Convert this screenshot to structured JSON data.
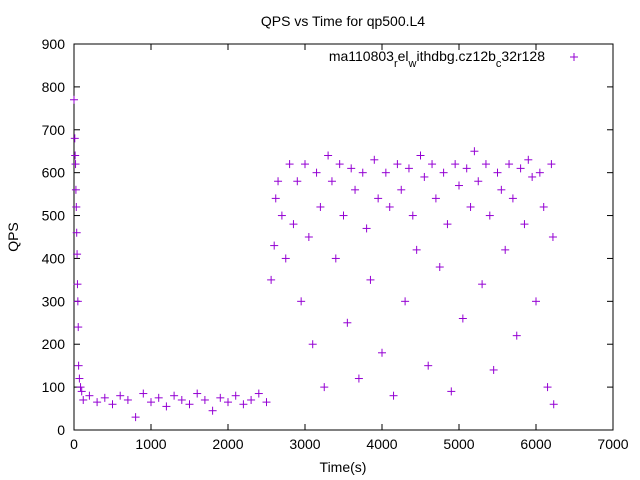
{
  "chart_data": {
    "type": "scatter",
    "title": "QPS vs Time for qp500.L4",
    "xlabel": "Time(s)",
    "ylabel": "QPS",
    "xlim": [
      0,
      7000
    ],
    "ylim": [
      0,
      900
    ],
    "xticks": [
      0,
      1000,
      2000,
      3000,
      4000,
      5000,
      6000,
      7000
    ],
    "yticks": [
      0,
      100,
      200,
      300,
      400,
      500,
      600,
      700,
      800,
      900
    ],
    "grid": false,
    "legend_position": "top-right",
    "marker": "+",
    "series": [
      {
        "name": "ma110803_rel_withdbg.cz12b_c32r128",
        "legend_parts": [
          {
            "text": "ma110803",
            "shift": "none"
          },
          {
            "text": "r",
            "shift": "sub"
          },
          {
            "text": "el",
            "shift": "none"
          },
          {
            "text": "w",
            "shift": "sub"
          },
          {
            "text": "ithdbg.cz12b",
            "shift": "none"
          },
          {
            "text": "c",
            "shift": "sub"
          },
          {
            "text": "32r128",
            "shift": "none"
          }
        ],
        "color": "#9400d3",
        "points": [
          [
            0,
            770
          ],
          [
            10,
            680
          ],
          [
            15,
            640
          ],
          [
            20,
            620
          ],
          [
            25,
            560
          ],
          [
            30,
            520
          ],
          [
            35,
            460
          ],
          [
            40,
            410
          ],
          [
            45,
            340
          ],
          [
            50,
            300
          ],
          [
            55,
            240
          ],
          [
            60,
            150
          ],
          [
            70,
            120
          ],
          [
            85,
            100
          ],
          [
            100,
            90
          ],
          [
            120,
            70
          ],
          [
            200,
            80
          ],
          [
            300,
            65
          ],
          [
            400,
            75
          ],
          [
            500,
            60
          ],
          [
            600,
            80
          ],
          [
            700,
            70
          ],
          [
            800,
            30
          ],
          [
            900,
            85
          ],
          [
            1000,
            65
          ],
          [
            1100,
            75
          ],
          [
            1200,
            55
          ],
          [
            1300,
            80
          ],
          [
            1400,
            70
          ],
          [
            1500,
            60
          ],
          [
            1600,
            85
          ],
          [
            1700,
            70
          ],
          [
            1800,
            45
          ],
          [
            1900,
            75
          ],
          [
            2000,
            65
          ],
          [
            2100,
            80
          ],
          [
            2200,
            60
          ],
          [
            2300,
            70
          ],
          [
            2400,
            85
          ],
          [
            2500,
            65
          ],
          [
            2560,
            350
          ],
          [
            2600,
            430
          ],
          [
            2620,
            540
          ],
          [
            2650,
            580
          ],
          [
            2700,
            500
          ],
          [
            2750,
            400
          ],
          [
            2800,
            620
          ],
          [
            2850,
            480
          ],
          [
            2900,
            580
          ],
          [
            2950,
            300
          ],
          [
            3000,
            620
          ],
          [
            3050,
            450
          ],
          [
            3100,
            200
          ],
          [
            3150,
            600
          ],
          [
            3200,
            520
          ],
          [
            3250,
            100
          ],
          [
            3300,
            640
          ],
          [
            3350,
            580
          ],
          [
            3400,
            400
          ],
          [
            3450,
            620
          ],
          [
            3500,
            500
          ],
          [
            3550,
            250
          ],
          [
            3600,
            610
          ],
          [
            3650,
            560
          ],
          [
            3700,
            120
          ],
          [
            3750,
            600
          ],
          [
            3800,
            470
          ],
          [
            3850,
            350
          ],
          [
            3900,
            630
          ],
          [
            3950,
            540
          ],
          [
            4000,
            180
          ],
          [
            4050,
            600
          ],
          [
            4100,
            520
          ],
          [
            4150,
            80
          ],
          [
            4200,
            620
          ],
          [
            4250,
            560
          ],
          [
            4300,
            300
          ],
          [
            4350,
            610
          ],
          [
            4400,
            500
          ],
          [
            4450,
            420
          ],
          [
            4500,
            640
          ],
          [
            4550,
            590
          ],
          [
            4600,
            150
          ],
          [
            4650,
            620
          ],
          [
            4700,
            540
          ],
          [
            4750,
            380
          ],
          [
            4800,
            600
          ],
          [
            4850,
            480
          ],
          [
            4900,
            90
          ],
          [
            4950,
            620
          ],
          [
            5000,
            570
          ],
          [
            5050,
            260
          ],
          [
            5100,
            610
          ],
          [
            5150,
            520
          ],
          [
            5200,
            650
          ],
          [
            5250,
            580
          ],
          [
            5300,
            340
          ],
          [
            5350,
            620
          ],
          [
            5400,
            500
          ],
          [
            5450,
            140
          ],
          [
            5500,
            600
          ],
          [
            5550,
            560
          ],
          [
            5600,
            420
          ],
          [
            5650,
            620
          ],
          [
            5700,
            540
          ],
          [
            5750,
            220
          ],
          [
            5800,
            610
          ],
          [
            5850,
            480
          ],
          [
            5900,
            630
          ],
          [
            5950,
            590
          ],
          [
            6000,
            300
          ],
          [
            6050,
            600
          ],
          [
            6100,
            520
          ],
          [
            6150,
            100
          ],
          [
            6200,
            620
          ],
          [
            6220,
            450
          ],
          [
            6230,
            60
          ]
        ]
      }
    ]
  }
}
